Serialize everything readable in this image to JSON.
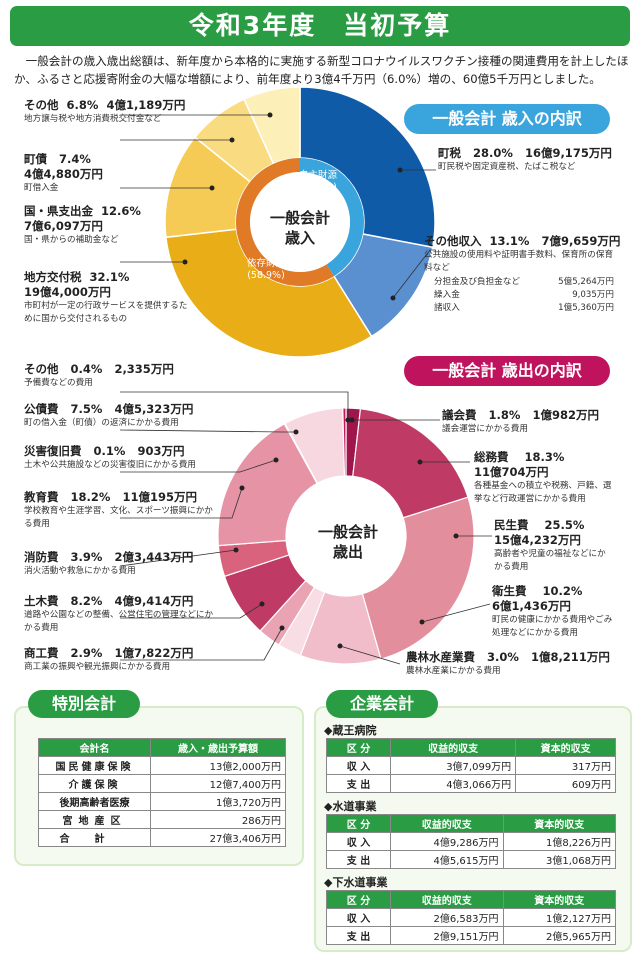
{
  "title": "令和3年度　当初予算",
  "intro": "一般会計の歳入歳出総額は、新年度から本格的に実施する新型コロナウイルスワクチン接種の関連費用を計上したほか、ふるさと応援寄附金の大幅な増額により、前年度より3億4千万円（6.0%）増の、60億5千万円としました。",
  "chart_data": [
    {
      "type": "pie",
      "title": "一般会計 歳入の内訳",
      "center_label": [
        "一般会計",
        "歳入"
      ],
      "ring_labels": {
        "own": "自主財源",
        "own_pct": "(41.1%)",
        "dep": "依存財源",
        "dep_pct": "(58.9%)"
      },
      "series": [
        {
          "name": "町税",
          "pct": "28.0%",
          "amount": "16億9,175万円",
          "value": 28.0,
          "note": "町民税や固定資産税、たばこ税など",
          "color": "#0f5ba8"
        },
        {
          "name": "その他収入",
          "pct": "13.1%",
          "amount": "7億9,659万円",
          "value": 13.1,
          "note": "公共施設の使用料や証明書手数料、保育所の保育料など",
          "color": "#5a8fd0"
        },
        {
          "name": "地方交付税",
          "pct": "32.1%",
          "amount": "19億4,000万円",
          "value": 32.1,
          "note": "市町村が一定の行政サービスを提供するために国から交付されるもの",
          "color": "#e8ad17"
        },
        {
          "name": "国・県支出金",
          "pct": "12.6%",
          "amount": "7億6,097万円",
          "value": 12.6,
          "note": "国・県からの補助金など",
          "color": "#f6cb55"
        },
        {
          "name": "町債",
          "pct": "7.4%",
          "amount": "4億4,880万円",
          "value": 7.4,
          "note": "町借入金",
          "color": "#f9dc82"
        },
        {
          "name": "その他",
          "pct": "6.8%",
          "amount": "4億1,189万円",
          "value": 6.8,
          "note": "地方譲与税や地方消費税交付金など",
          "color": "#fcefb8"
        }
      ],
      "breakdown": [
        {
          "name": "分担金及び負担金など",
          "amount": "5億5,264万円"
        },
        {
          "name": "繰入金",
          "amount": "9,035万円"
        },
        {
          "name": "諸収入",
          "amount": "1億5,360万円"
        }
      ]
    },
    {
      "type": "pie",
      "title": "一般会計 歳出の内訳",
      "center_label": [
        "一般会計",
        "歳出"
      ],
      "series": [
        {
          "name": "議会費",
          "pct": "1.8%",
          "amount": "1億982万円",
          "value": 1.8,
          "note": "議会運営にかかる費用",
          "color": "#a0154c"
        },
        {
          "name": "総務費",
          "pct": "18.3%",
          "amount": "11億704万円",
          "value": 18.3,
          "note": "各種基金への積立や税務、戸籍、選挙など行政運営にかかる費用",
          "color": "#bf3a64"
        },
        {
          "name": "民生費",
          "pct": "25.5%",
          "amount": "15億4,232万円",
          "value": 25.5,
          "note": "高齢者や児童の福祉などにかかる費用",
          "color": "#e38e9c"
        },
        {
          "name": "衛生費",
          "pct": "10.2%",
          "amount": "6億1,436万円",
          "value": 10.2,
          "note": "町民の健康にかかる費用やごみ処理などにかかる費用",
          "color": "#f2bdcb"
        },
        {
          "name": "農林水産業費",
          "pct": "3.0%",
          "amount": "1億8,211万円",
          "value": 3.0,
          "note": "農林水産業にかかる費用",
          "color": "#f8dde5"
        },
        {
          "name": "商工費",
          "pct": "2.9%",
          "amount": "1億7,822万円",
          "value": 2.9,
          "note": "商工業の振興や観光振興にかかる費用",
          "color": "#e9a3b3"
        },
        {
          "name": "土木費",
          "pct": "8.2%",
          "amount": "4億9,414万円",
          "value": 8.2,
          "note": "道路や公園などの整備、公営住宅の管理などにかかる費用",
          "color": "#bf3a64"
        },
        {
          "name": "消防費",
          "pct": "3.9%",
          "amount": "2億3,443万円",
          "value": 3.9,
          "note": "消火活動や救急にかかる費用",
          "color": "#d9637c"
        },
        {
          "name": "教育費",
          "pct": "18.2%",
          "amount": "11億195万円",
          "value": 18.2,
          "note": "学校教育や生涯学習、文化、スポーツ振興にかかる費用",
          "color": "#e693a5"
        },
        {
          "name": "災害復旧費",
          "pct": "0.1%",
          "amount": "903万円",
          "value": 0.1,
          "note": "土木や公共施設などの災害復旧にかかる費用",
          "color": "#d9637c"
        },
        {
          "name": "公債費",
          "pct": "7.5%",
          "amount": "4億5,323万円",
          "value": 7.5,
          "note": "町の借入金（町債）の返済にかかる費用",
          "color": "#f7d8e0"
        },
        {
          "name": "その他",
          "pct": "0.4%",
          "amount": "2,335万円",
          "value": 0.4,
          "note": "予備費などの費用",
          "color": "#c2185b"
        }
      ]
    }
  ],
  "special": {
    "title": "特別会計",
    "headers": [
      "会計名",
      "歳入・歳出予算額"
    ],
    "rows": [
      [
        "国民健康保険",
        "13億2,000万円"
      ],
      [
        "介護保険",
        "12億7,400万円"
      ],
      [
        "後期高齢者医療",
        "1億3,720万円"
      ],
      [
        "宮地産区",
        "286万円"
      ],
      [
        "合計",
        "27億3,406万円"
      ]
    ]
  },
  "enterprise": {
    "title": "企業会計",
    "headers": [
      "区 分",
      "収益的収支",
      "資本的収支"
    ],
    "sections": [
      {
        "name": "◆蔵王病院",
        "rows": [
          [
            "収 入",
            "3億7,099万円",
            "317万円"
          ],
          [
            "支 出",
            "4億3,066万円",
            "609万円"
          ]
        ]
      },
      {
        "name": "◆水道事業",
        "rows": [
          [
            "収 入",
            "4億9,286万円",
            "1億8,226万円"
          ],
          [
            "支 出",
            "4億5,615万円",
            "3億1,068万円"
          ]
        ]
      },
      {
        "name": "◆下水道事業",
        "rows": [
          [
            "収 入",
            "2億6,583万円",
            "1億2,127万円"
          ],
          [
            "支 出",
            "2億9,151万円",
            "2億5,965万円"
          ]
        ]
      }
    ]
  }
}
